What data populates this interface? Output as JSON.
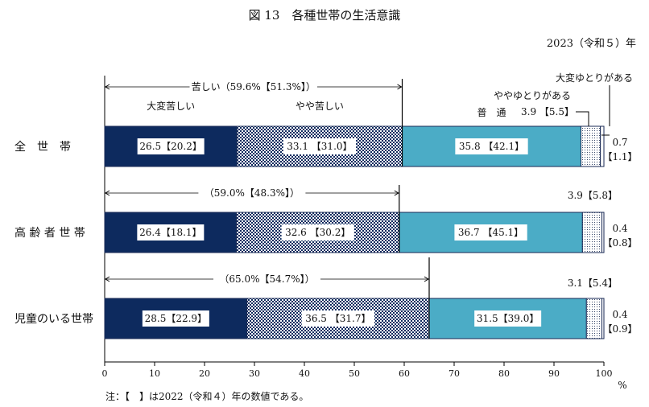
{
  "chart_data": {
    "type": "bar",
    "orientation": "horizontal",
    "stacked": true,
    "title": "図 13　各種世帯の生活意識",
    "year_label": "2023（令和５）年",
    "note": "注：【　】は2022（令和４）年の数値である。",
    "x_unit": "%",
    "xlim": [
      0,
      100
    ],
    "x_ticks": [
      "0",
      "10",
      "20",
      "30",
      "40",
      "50",
      "60",
      "70",
      "80",
      "90",
      "100"
    ],
    "categories": [
      "全　世　帯",
      "高 齢 者 世 帯",
      "児童のいる世帯"
    ],
    "series": [
      {
        "name": "大変苦しい",
        "color": "#0d2a5e",
        "values": [
          26.5,
          26.4,
          28.5
        ],
        "labels": [
          "26.5【20.2】",
          "26.4【18.1】",
          "28.5【22.9】"
        ]
      },
      {
        "name": "やや苦しい",
        "color": "#5a6a8a",
        "pattern": "checker",
        "values": [
          33.1,
          32.6,
          36.5
        ],
        "labels": [
          "33.1 【31.0】",
          "32.6 【30.2】",
          "36.5 【31.7】"
        ]
      },
      {
        "name": "普　通",
        "color": "#4bacc6",
        "values": [
          35.8,
          36.7,
          31.5
        ],
        "labels": [
          "35.8 【42.1】",
          "36.7 【45.1】",
          "31.5【39.0】"
        ]
      },
      {
        "name": "ややゆとりがある",
        "pattern": "dots",
        "values": [
          3.9,
          3.9,
          3.1
        ],
        "labels": [
          "3.9 【5.5】",
          "3.9【5.8】",
          "3.1【5.4】"
        ]
      },
      {
        "name": "大変ゆとりがある",
        "values": [
          0.7,
          0.4,
          0.4
        ],
        "labels": [
          "0.7",
          "0.4",
          "0.4"
        ],
        "labels_2022": [
          "【1.1】",
          "【0.8】",
          "【0.9】"
        ]
      }
    ],
    "bracket_totals": [
      {
        "category_index": 0,
        "value": 59.6,
        "label": "苦しい（59.6%【51.3%】）"
      },
      {
        "category_index": 1,
        "value": 59.0,
        "label": "（59.0%【48.3%】）"
      },
      {
        "category_index": 2,
        "value": 65.0,
        "label": "（65.0%【54.7%】）"
      }
    ],
    "grid": false,
    "legend_placement": "inline-above-first-bar"
  }
}
